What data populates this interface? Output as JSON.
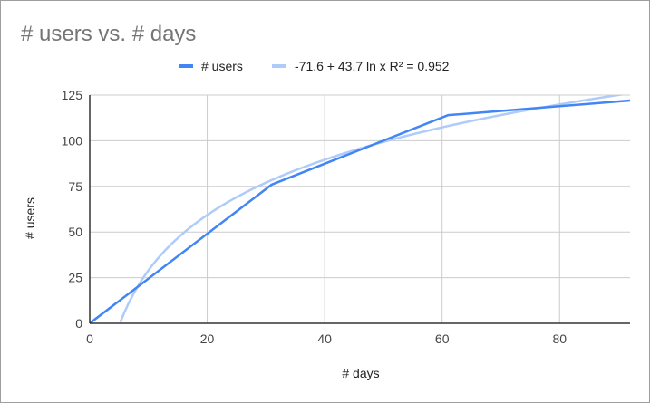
{
  "chart_data": {
    "type": "line",
    "title": "# users vs. # days",
    "xlabel": "# days",
    "ylabel": "# users",
    "xlim": [
      0,
      92
    ],
    "ylim": [
      0,
      125
    ],
    "x_ticks": [
      "0",
      "20",
      "40",
      "60",
      "80"
    ],
    "y_ticks": [
      "0",
      "25",
      "50",
      "75",
      "100",
      "125"
    ],
    "grid": true,
    "legend_position": "top",
    "series": [
      {
        "name": "# users",
        "color": "#4285f4",
        "x": [
          0,
          31,
          61,
          92
        ],
        "y": [
          0,
          76,
          114,
          122
        ]
      },
      {
        "name": "-71.6 + 43.7 ln x R² = 0.952",
        "color": "#aecbfa",
        "type": "trendline",
        "equation": {
          "a": -71.6,
          "b": 43.7,
          "form": "logarithmic"
        }
      }
    ]
  }
}
